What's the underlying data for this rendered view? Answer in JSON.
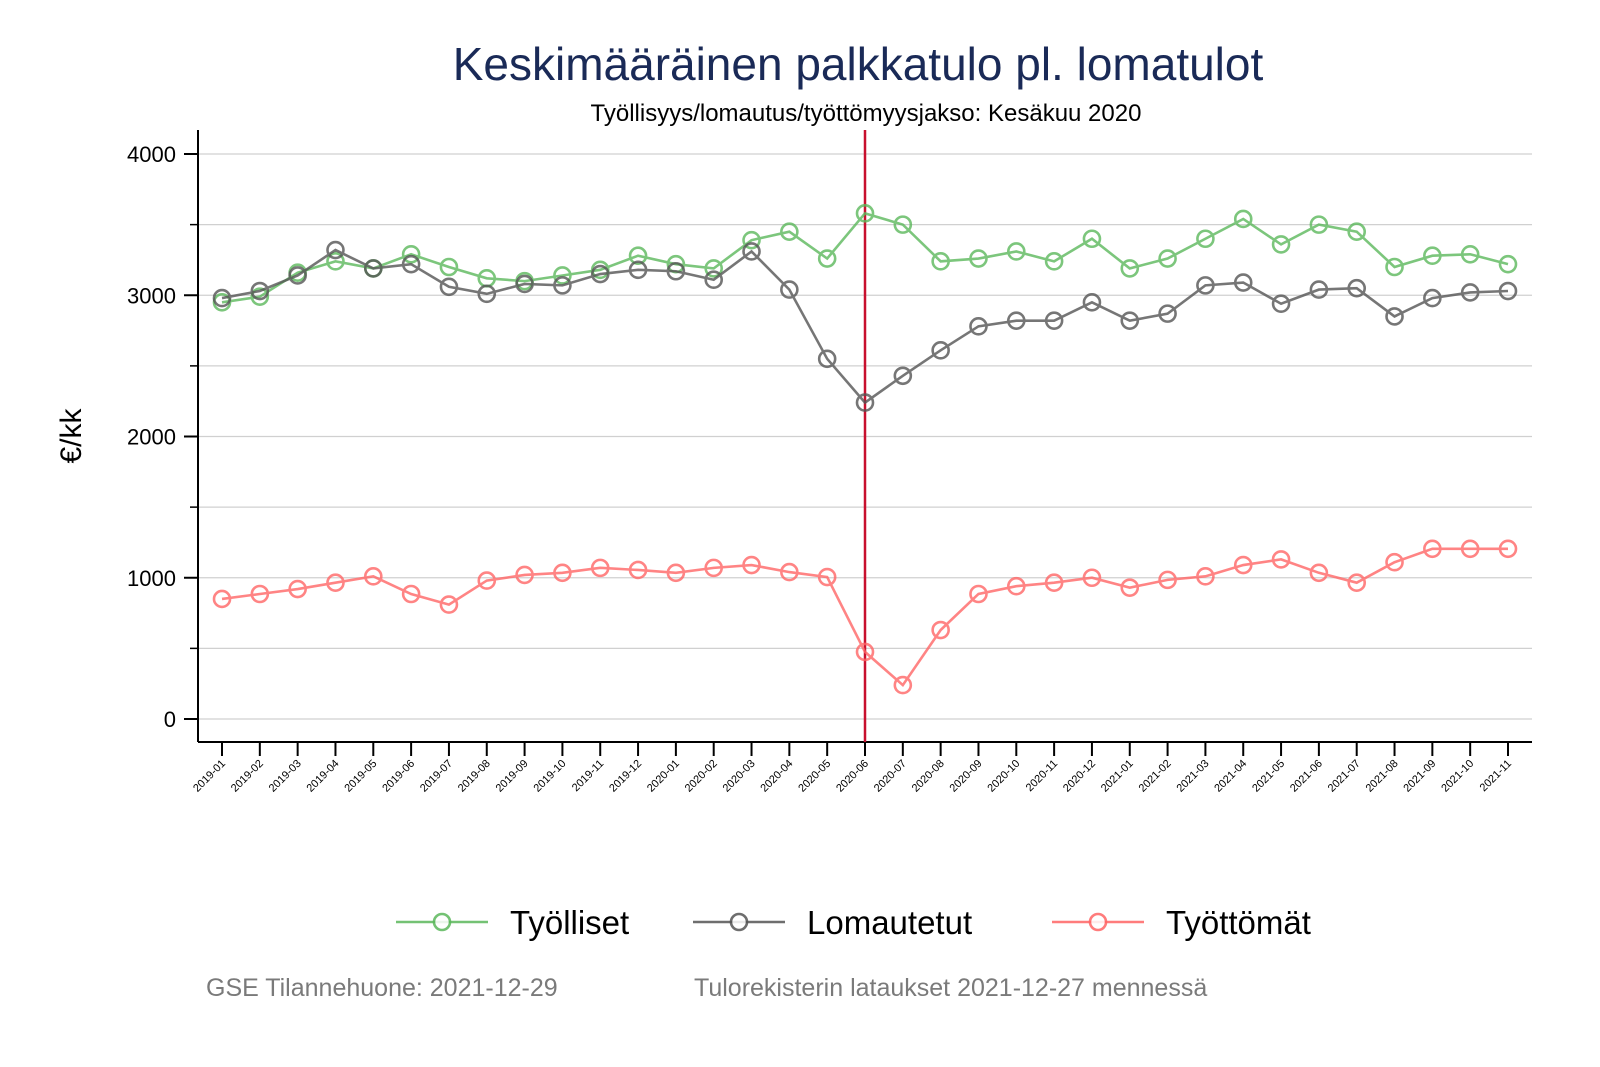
{
  "chart_data": {
    "type": "line",
    "title": "Keskimääräinen palkkatulo pl. lomatulot",
    "subtitle": "Työllisyys/lomautus/työttömyysjakso: Kesäkuu 2020",
    "xlabel": "",
    "ylabel": "€/kk",
    "ylim": [
      -150,
      4150
    ],
    "yticks": [
      0,
      1000,
      2000,
      3000,
      4000
    ],
    "yminor_ticks": [
      500,
      1500,
      2500,
      3500
    ],
    "grid": true,
    "legend_position": "bottom",
    "reference_line": {
      "x": "2020-06",
      "color": "#c8102e"
    },
    "x": [
      "2019-01",
      "2019-02",
      "2019-03",
      "2019-04",
      "2019-05",
      "2019-06",
      "2019-07",
      "2019-08",
      "2019-09",
      "2019-10",
      "2019-11",
      "2019-12",
      "2020-01",
      "2020-02",
      "2020-03",
      "2020-04",
      "2020-05",
      "2020-06",
      "2020-07",
      "2020-08",
      "2020-09",
      "2020-10",
      "2020-11",
      "2020-12",
      "2021-01",
      "2021-02",
      "2021-03",
      "2021-04",
      "2021-05",
      "2021-06",
      "2021-07",
      "2021-08",
      "2021-09",
      "2021-10",
      "2021-11"
    ],
    "series": [
      {
        "name": "Työlliset",
        "color": "#5cb85c",
        "values": [
          2950,
          2990,
          3160,
          3240,
          3190,
          3290,
          3200,
          3120,
          3100,
          3140,
          3180,
          3280,
          3220,
          3190,
          3390,
          3450,
          3260,
          3580,
          3500,
          3240,
          3260,
          3310,
          3240,
          3400,
          3190,
          3260,
          3400,
          3540,
          3360,
          3500,
          3450,
          3200,
          3280,
          3290,
          3220
        ]
      },
      {
        "name": "Lomautetut",
        "color": "#555555",
        "values": [
          2980,
          3030,
          3140,
          3320,
          3190,
          3220,
          3060,
          3010,
          3080,
          3070,
          3150,
          3180,
          3170,
          3110,
          3310,
          3040,
          2550,
          2240,
          2430,
          2610,
          2780,
          2820,
          2820,
          2950,
          2820,
          2870,
          3070,
          3090,
          2940,
          3040,
          3050,
          2850,
          2980,
          3020,
          3030
        ]
      },
      {
        "name": "Työttömät",
        "color": "#ff6666",
        "values": [
          850,
          885,
          920,
          965,
          1010,
          885,
          810,
          980,
          1020,
          1035,
          1070,
          1055,
          1035,
          1070,
          1090,
          1040,
          1005,
          475,
          240,
          630,
          885,
          940,
          965,
          1000,
          930,
          985,
          1010,
          1090,
          1130,
          1035,
          965,
          1110,
          1205,
          1205,
          1205
        ]
      }
    ],
    "footer": {
      "left": "GSE Tilannehuone: 2021-12-29",
      "right": "Tulorekisterin lataukset 2021-12-27 mennessä"
    }
  }
}
